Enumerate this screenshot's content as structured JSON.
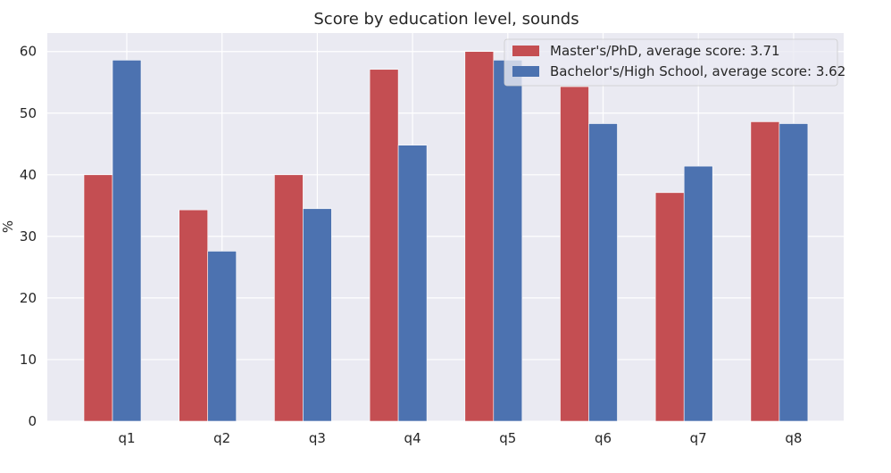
{
  "chart_data": {
    "type": "bar",
    "title": "Score by education level, sounds",
    "xlabel": "",
    "ylabel": "%",
    "ylim": [
      0,
      63
    ],
    "yticks": [
      0,
      10,
      20,
      30,
      40,
      50,
      60
    ],
    "categories": [
      "q1",
      "q2",
      "q3",
      "q4",
      "q5",
      "q6",
      "q7",
      "q8"
    ],
    "series": [
      {
        "name": "Master's/PhD, average score: 3.71",
        "color": "#c44e52",
        "values": [
          40.0,
          34.3,
          40.0,
          57.1,
          60.0,
          54.3,
          37.1,
          48.6
        ]
      },
      {
        "name": "Bachelor's/High School, average score: 3.62",
        "color": "#4c72b0",
        "values": [
          58.6,
          27.6,
          34.5,
          44.8,
          58.6,
          48.3,
          41.4,
          48.3
        ]
      }
    ],
    "legend_position": "top-right",
    "grid": true,
    "background_color": "#eaeaf2"
  }
}
